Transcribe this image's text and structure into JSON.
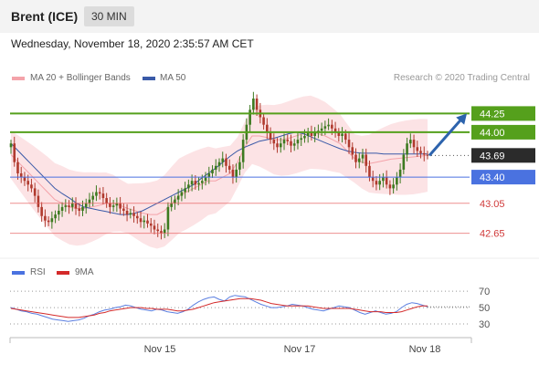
{
  "header": {
    "instrument": "Brent (ICE)",
    "timeframe": "30 MIN"
  },
  "datetime": "Wednesday, November 18, 2020 2:35:57 AM CET",
  "legend": {
    "ma20_label": "MA 20 + Bollinger Bands",
    "ma50_label": "MA 50",
    "credit": "Research © 2020 Trading Central"
  },
  "rsi_legend": {
    "rsi_label": "RSI",
    "ma_label": "9MA"
  },
  "colors": {
    "up": "#3d7a20",
    "down": "#b03a2e",
    "band": "#fbd9dc",
    "ma20": "#f4a3aa",
    "ma50": "#3a5aa8",
    "resistance": "#55a01c",
    "support_blue": "#4a72e0",
    "support_red": "#e86060",
    "arrow": "#2d63ad",
    "current": "#2b2b2b"
  },
  "chart_data": [
    {
      "type": "candlestick",
      "x_ticks": [
        "Nov 15",
        "Nov 17",
        "Nov 18"
      ],
      "ylim": [
        42.45,
        44.45
      ],
      "current_price": "43.69",
      "levels": [
        {
          "value": 44.25,
          "label": "44.25",
          "kind": "resistance"
        },
        {
          "value": 44.0,
          "label": "44.00",
          "kind": "resistance"
        },
        {
          "value": 43.4,
          "label": "43.40",
          "kind": "pivot"
        },
        {
          "value": 43.05,
          "label": "43.05",
          "kind": "support"
        },
        {
          "value": 42.65,
          "label": "42.65",
          "kind": "support"
        }
      ],
      "forecast_arrow": {
        "from": 43.69,
        "to": 44.25
      },
      "close": [
        43.85,
        43.6,
        43.45,
        43.4,
        43.35,
        43.3,
        43.25,
        43.15,
        43.0,
        42.88,
        42.82,
        42.8,
        42.85,
        42.9,
        42.95,
        43.0,
        43.02,
        43.0,
        43.05,
        42.98,
        42.95,
        43.0,
        43.05,
        43.1,
        43.15,
        43.2,
        43.18,
        43.12,
        43.05,
        43.0,
        43.02,
        43.05,
        42.98,
        42.95,
        42.9,
        42.92,
        42.88,
        42.85,
        42.8,
        42.82,
        42.78,
        42.75,
        42.7,
        42.68,
        42.65,
        42.7,
        43.0,
        43.05,
        43.1,
        43.15,
        43.2,
        43.25,
        43.3,
        43.35,
        43.3,
        43.32,
        43.35,
        43.4,
        43.45,
        43.5,
        43.55,
        43.6,
        43.65,
        43.55,
        43.5,
        43.4,
        43.5,
        43.6,
        43.9,
        44.1,
        44.3,
        44.45,
        44.3,
        44.2,
        44.1,
        44.0,
        43.9,
        43.85,
        43.8,
        43.85,
        43.9,
        43.88,
        43.82,
        43.85,
        43.9,
        43.92,
        43.95,
        44.0,
        43.95,
        44.0,
        44.02,
        44.05,
        44.08,
        44.1,
        44.05,
        44.0,
        43.95,
        43.98,
        43.9,
        43.8,
        43.7,
        43.6,
        43.65,
        43.7,
        43.55,
        43.4,
        43.35,
        43.3,
        43.35,
        43.4,
        43.3,
        43.25,
        43.3,
        43.4,
        43.5,
        43.7,
        43.85,
        43.9,
        43.8,
        43.75,
        43.72,
        43.7,
        43.69
      ],
      "ma20": [
        43.7,
        43.6,
        43.5,
        43.4,
        43.3,
        43.2,
        43.1,
        43.05,
        43.0,
        42.98,
        42.98,
        43.0,
        43.02,
        43.05,
        43.05,
        43.02,
        42.98,
        42.95,
        42.92,
        42.9,
        42.9,
        42.95,
        43.05,
        43.15,
        43.2,
        43.25,
        43.3,
        43.35,
        43.35,
        43.4,
        43.45,
        43.6,
        43.8,
        43.95,
        43.95,
        43.93,
        43.9,
        43.9,
        43.92,
        43.95,
        43.98,
        44.0,
        43.98,
        43.95,
        43.9,
        43.85,
        43.75,
        43.65,
        43.6,
        43.58,
        43.6,
        43.62,
        43.64,
        43.65,
        43.66,
        43.67,
        43.68,
        43.69
      ],
      "ma50": [
        43.85,
        43.75,
        43.65,
        43.55,
        43.45,
        43.35,
        43.25,
        43.18,
        43.12,
        43.05,
        43.0,
        42.98,
        42.96,
        42.94,
        42.92,
        42.9,
        42.9,
        42.92,
        42.95,
        43.0,
        43.05,
        43.1,
        43.15,
        43.2,
        43.25,
        43.3,
        43.38,
        43.45,
        43.52,
        43.6,
        43.68,
        43.75,
        43.8,
        43.84,
        43.88,
        43.9,
        43.92,
        43.95,
        43.98,
        44.0,
        43.98,
        43.94,
        43.9,
        43.86,
        43.82,
        43.78,
        43.75,
        43.73,
        43.72,
        43.72,
        43.72,
        43.71,
        43.71,
        43.71,
        43.71,
        43.71,
        43.71,
        43.71
      ]
    },
    {
      "type": "line",
      "name": "RSI",
      "ylim": [
        20,
        78
      ],
      "y_ticks": [
        "70",
        "50",
        "30"
      ],
      "rsi": [
        50,
        48,
        46,
        45,
        43,
        42,
        40,
        38,
        36,
        35,
        34,
        33,
        34,
        35,
        37,
        40,
        42,
        45,
        47,
        48,
        50,
        51,
        53,
        52,
        50,
        48,
        47,
        46,
        48,
        47,
        45,
        44,
        43,
        45,
        48,
        53,
        57,
        60,
        62,
        63,
        60,
        58,
        63,
        65,
        64,
        63,
        60,
        57,
        54,
        52,
        50,
        50,
        51,
        52,
        54,
        53,
        52,
        50,
        48,
        47,
        46,
        48,
        50,
        52,
        51,
        50,
        47,
        44,
        42,
        44,
        46,
        44,
        42,
        43,
        45,
        50,
        54,
        56,
        55,
        53,
        51
      ],
      "ma9": [
        49,
        48,
        47,
        46,
        45,
        44,
        43,
        42,
        41,
        40,
        39,
        38,
        38,
        38,
        39,
        40,
        41,
        43,
        44,
        46,
        47,
        48,
        49,
        50,
        50,
        50,
        49,
        49,
        48,
        48,
        48,
        47,
        46,
        46,
        47,
        48,
        50,
        52,
        54,
        56,
        57,
        58,
        59,
        60,
        61,
        61,
        61,
        60,
        59,
        57,
        55,
        54,
        53,
        52,
        52,
        52,
        52,
        52,
        51,
        50,
        49,
        49,
        49,
        49,
        49,
        49,
        48,
        47,
        46,
        45,
        45,
        45,
        44,
        44,
        44,
        45,
        47,
        49,
        51,
        52,
        52
      ]
    }
  ]
}
